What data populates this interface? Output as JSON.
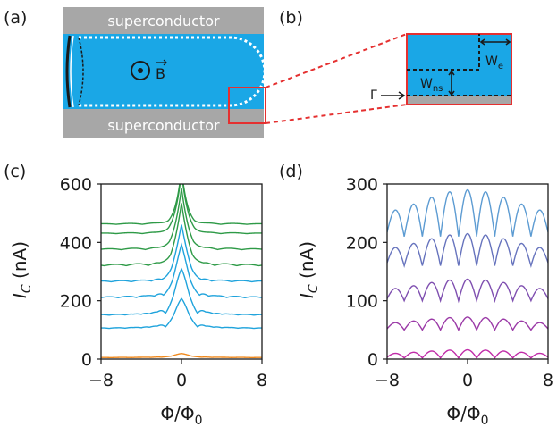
{
  "panels": {
    "a": {
      "label": "(a)",
      "top_region": "superconductor",
      "bottom_region": "superconductor",
      "field_symbol": "B",
      "colors": {
        "normal": "#1aa7e6",
        "superconductor": "#a7a7a7",
        "edge_path": "#ffffff",
        "highlight": "#e53030"
      }
    },
    "b": {
      "label": "(b)",
      "w_e": "W",
      "w_e_sub": "e",
      "w_ns": "W",
      "w_ns_sub": "ns",
      "gamma": "Γ"
    }
  },
  "chart_data": [
    {
      "panel": "(c)",
      "type": "line",
      "xlabel": "Φ/Φ",
      "xlabel_sub": "0",
      "ylabel": "I",
      "ylabel_sub": "C",
      "ylabel_unit": " (nA)",
      "xlim": [
        -8,
        8
      ],
      "ylim": [
        0,
        600
      ],
      "xticks": [
        -8,
        0,
        8
      ],
      "xtick_labels": [
        "−8",
        "0",
        "8"
      ],
      "yticks": [
        0,
        200,
        400,
        600
      ],
      "ytick_labels": [
        "0",
        "200",
        "400",
        "600"
      ],
      "grid": false,
      "series": [
        {
          "color": "#f08a1e",
          "offset": 5,
          "bg": 6,
          "amp": 12,
          "period": 2.0,
          "decay": 3.0
        },
        {
          "color": "#1fa3dc",
          "offset": 105,
          "bg": 20,
          "amp": 95,
          "period": 1.6,
          "decay": 2.6
        },
        {
          "color": "#1fa3dc",
          "offset": 150,
          "bg": 25,
          "amp": 150,
          "period": 1.6,
          "decay": 2.4
        },
        {
          "color": "#1fa3dc",
          "offset": 210,
          "bg": 35,
          "amp": 170,
          "period": 1.8,
          "decay": 1.5
        },
        {
          "color": "#1fa3dc",
          "offset": 265,
          "bg": 30,
          "amp": 185,
          "period": 2.0,
          "decay": 1.1
        },
        {
          "color": "#2e9a47",
          "offset": 320,
          "bg": 40,
          "amp": 200,
          "period": 2.2,
          "decay": 0.9
        },
        {
          "color": "#2e9a47",
          "offset": 375,
          "bg": 30,
          "amp": 200,
          "period": 2.4,
          "decay": 0.8
        },
        {
          "color": "#2e9a47",
          "offset": 430,
          "bg": 20,
          "amp": 200,
          "period": 2.6,
          "decay": 0.7
        },
        {
          "color": "#2e9a47",
          "offset": 462,
          "bg": 20,
          "amp": 180,
          "period": 2.6,
          "decay": 0.6
        }
      ]
    },
    {
      "panel": "(d)",
      "type": "line",
      "xlabel": "Φ/Φ",
      "xlabel_sub": "0",
      "ylabel": "I",
      "ylabel_sub": "C",
      "ylabel_unit": " (nA)",
      "xlim": [
        -8,
        8
      ],
      "ylim": [
        0,
        300
      ],
      "xticks": [
        -8,
        0,
        8
      ],
      "xtick_labels": [
        "−8",
        "0",
        "8"
      ],
      "yticks": [
        0,
        100,
        200,
        300
      ],
      "ytick_labels": [
        "0",
        "100",
        "200",
        "300"
      ],
      "grid": false,
      "series": [
        {
          "color": "#c02ca8",
          "base": 2,
          "amp": 14,
          "period": 1.8
        },
        {
          "color": "#9b3aa7",
          "base": 50,
          "amp": 22,
          "period": 1.8
        },
        {
          "color": "#7f4fb0",
          "base": 100,
          "amp": 37,
          "period": 1.8
        },
        {
          "color": "#6673bd",
          "base": 160,
          "amp": 55,
          "period": 1.8
        },
        {
          "color": "#5c9bd2",
          "base": 210,
          "amp": 80,
          "period": 1.8
        }
      ]
    }
  ]
}
